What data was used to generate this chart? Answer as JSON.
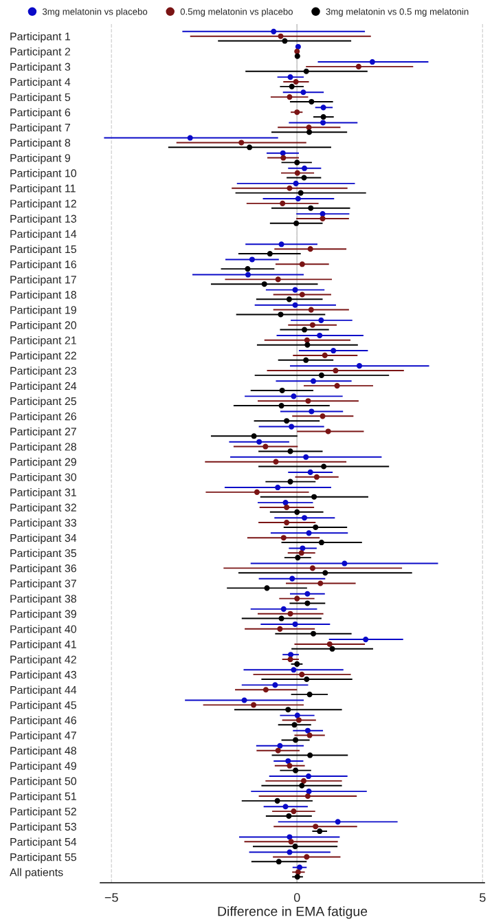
{
  "chart_data": {
    "type": "scatter",
    "orientation": "horizontal",
    "marker": "circle",
    "xlabel": "Difference in EMA fatigue",
    "xlim": [
      -5.3,
      5.05
    ],
    "xticks": [
      -5,
      0,
      5
    ],
    "grid": "x",
    "legend": "top",
    "ref_lines": [
      {
        "axis": "x",
        "value": 0,
        "color": "#c8c8c8",
        "line_style": "solid"
      }
    ],
    "categories": [
      "Participant 1",
      "Participant 2",
      "Participant 3",
      "Participant 4",
      "Participant 5",
      "Participant 6",
      "Participant 7",
      "Participant 8",
      "Participant 9",
      "Participant 10",
      "Participant 11",
      "Participant 12",
      "Participant 13",
      "Participant 14",
      "Participant 15",
      "Participant 16",
      "Participant 17",
      "Participant 18",
      "Participant 19",
      "Participant 20",
      "Participant 21",
      "Participant 22",
      "Participant 23",
      "Participant 24",
      "Participant 25",
      "Participant 26",
      "Participant 27",
      "Participant 28",
      "Participant 29",
      "Participant 30",
      "Participant 31",
      "Participant 32",
      "Participant 33",
      "Participant 34",
      "Participant 35",
      "Participant 36",
      "Participant 37",
      "Participant 38",
      "Participant 39",
      "Participant 40",
      "Participant 41",
      "Participant 42",
      "Participant 43",
      "Participant 44",
      "Participant 45",
      "Participant 46",
      "Participant 47",
      "Participant 48",
      "Participant 49",
      "Participant 50",
      "Participant 51",
      "Participant 52",
      "Participant 53",
      "Participant 54",
      "Participant 55",
      "All patients"
    ],
    "series": [
      {
        "name": "3mg melatonin vs placebo",
        "color": "#0a0ac8",
        "values": [
          -0.63,
          0.03,
          2.03,
          -0.18,
          0.17,
          0.71,
          0.7,
          -2.88,
          -0.38,
          0.2,
          -0.03,
          0.03,
          0.69,
          null,
          -0.42,
          -1.21,
          -1.32,
          -0.05,
          -0.05,
          0.65,
          0.61,
          0.98,
          1.68,
          0.44,
          -0.09,
          0.39,
          -0.15,
          -1.02,
          0.24,
          0.36,
          -0.52,
          -0.31,
          0.2,
          0.32,
          0.15,
          1.28,
          -0.13,
          0.28,
          -0.36,
          -0.05,
          1.85,
          -0.17,
          -0.09,
          -0.59,
          -1.42,
          0.01,
          0.29,
          -0.46,
          -0.24,
          0.31,
          0.32,
          -0.31,
          1.1,
          -0.2,
          -0.2,
          0.07
        ],
        "errors": [
          [
            -3.09,
            1.83
          ],
          null,
          [
            0.56,
            3.54
          ],
          [
            -0.53,
            0.18
          ],
          [
            -0.38,
            0.72
          ],
          [
            0.49,
            0.96
          ],
          [
            -0.22,
            1.63
          ],
          [
            -5.2,
            -0.51
          ],
          [
            -0.82,
            0.05
          ],
          [
            -0.24,
            0.65
          ],
          [
            -1.62,
            1.56
          ],
          [
            -0.92,
            1.0
          ],
          [
            -0.02,
            1.41
          ],
          null,
          [
            -1.39,
            0.55
          ],
          [
            -1.93,
            -0.49
          ],
          [
            -2.82,
            0.18
          ],
          [
            -0.84,
            0.74
          ],
          [
            -1.14,
            1.05
          ],
          [
            -0.17,
            1.49
          ],
          [
            -0.55,
            1.79
          ],
          [
            0.05,
            1.91
          ],
          [
            -0.19,
            3.56
          ],
          [
            -0.57,
            1.47
          ],
          [
            -1.41,
            1.23
          ],
          [
            -0.45,
            1.24
          ],
          [
            -1.03,
            0.73
          ],
          [
            -1.83,
            -0.21
          ],
          [
            -1.8,
            2.28
          ],
          [
            -0.24,
            0.96
          ],
          [
            -1.95,
            0.92
          ],
          [
            -1.06,
            0.43
          ],
          [
            -0.61,
            1.02
          ],
          [
            -0.71,
            1.37
          ],
          [
            -0.22,
            0.53
          ],
          [
            -1.25,
            3.8
          ],
          [
            -1.03,
            0.76
          ],
          [
            -0.19,
            0.75
          ],
          [
            -1.25,
            0.54
          ],
          [
            -0.98,
            0.89
          ],
          [
            0.86,
            2.86
          ],
          [
            -0.39,
            0.05
          ],
          [
            -1.44,
            1.25
          ],
          [
            -1.49,
            0.3
          ],
          [
            -3.02,
            0.18
          ],
          [
            -0.46,
            0.47
          ],
          [
            -0.11,
            0.7
          ],
          [
            -1.1,
            0.18
          ],
          [
            -0.63,
            0.17
          ],
          [
            -0.75,
            1.36
          ],
          [
            -1.24,
            1.88
          ],
          [
            -0.9,
            0.29
          ],
          [
            -0.51,
            2.71
          ],
          [
            -1.56,
            1.15
          ],
          [
            -1.29,
            0.9
          ],
          [
            -0.12,
            0.26
          ]
        ]
      },
      {
        "name": "0.5mg melatonin vs placebo",
        "color": "#7a1414",
        "values": [
          -0.44,
          0.0,
          1.66,
          -0.03,
          -0.2,
          0.0,
          0.32,
          -1.5,
          -0.37,
          0.01,
          -0.2,
          -0.39,
          0.69,
          null,
          0.36,
          0.14,
          -0.51,
          0.14,
          0.38,
          0.42,
          0.27,
          0.75,
          1.04,
          1.08,
          0.3,
          0.69,
          0.84,
          -0.85,
          -0.57,
          0.53,
          -1.08,
          -0.28,
          -0.28,
          -0.36,
          0.12,
          0.42,
          0.63,
          0.0,
          -0.18,
          -0.46,
          0.88,
          -0.18,
          0.13,
          -0.84,
          -1.17,
          0.05,
          0.34,
          -0.51,
          -0.2,
          0.18,
          0.29,
          -0.09,
          0.5,
          -0.16,
          0.26,
          0.03
        ],
        "errors": [
          [
            -2.88,
            1.99
          ],
          null,
          [
            0.24,
            3.13
          ],
          [
            -0.37,
            0.32
          ],
          [
            -0.71,
            0.3
          ],
          [
            -0.17,
            0.15
          ],
          [
            -0.52,
            1.17
          ],
          [
            -3.25,
            0.25
          ],
          [
            -0.8,
            0.05
          ],
          [
            -0.43,
            0.46
          ],
          [
            -1.76,
            1.36
          ],
          [
            -1.36,
            0.58
          ],
          [
            -0.02,
            1.4
          ],
          null,
          [
            -0.61,
            1.33
          ],
          [
            -0.58,
            0.86
          ],
          [
            -1.94,
            0.94
          ],
          [
            -0.64,
            0.92
          ],
          [
            -0.64,
            1.4
          ],
          [
            -0.24,
            1.07
          ],
          [
            -0.88,
            1.44
          ],
          [
            -0.11,
            1.63
          ],
          [
            -0.81,
            2.88
          ],
          [
            0.18,
            2.05
          ],
          [
            -1.06,
            1.66
          ],
          [
            -0.13,
            1.52
          ],
          [
            0.0,
            1.8
          ],
          [
            -1.71,
            0.02
          ],
          [
            -2.48,
            1.33
          ],
          [
            -0.05,
            1.12
          ],
          [
            -2.46,
            0.32
          ],
          [
            -1.01,
            0.46
          ],
          [
            -1.04,
            0.5
          ],
          [
            -1.34,
            0.61
          ],
          [
            -0.25,
            0.49
          ],
          [
            -1.98,
            2.83
          ],
          [
            -0.3,
            1.58
          ],
          [
            -0.48,
            0.47
          ],
          [
            -1.06,
            0.71
          ],
          [
            -1.41,
            0.48
          ],
          [
            -0.07,
            1.83
          ],
          [
            -0.4,
            0.05
          ],
          [
            -1.18,
            1.45
          ],
          [
            -1.67,
            0.0
          ],
          [
            -2.53,
            0.18
          ],
          [
            -0.4,
            0.51
          ],
          [
            -0.07,
            0.75
          ],
          [
            -1.09,
            0.07
          ],
          [
            -0.6,
            0.21
          ],
          [
            -0.85,
            1.21
          ],
          [
            -1.03,
            1.61
          ],
          [
            -0.67,
            0.49
          ],
          [
            -0.63,
            1.62
          ],
          [
            -1.42,
            1.1
          ],
          [
            -0.65,
            1.17
          ],
          [
            -0.13,
            0.21
          ]
        ]
      },
      {
        "name": "3mg melatonin vs 0.5 mg melatonin",
        "color": "#000000",
        "values": [
          -0.33,
          0.01,
          0.25,
          -0.14,
          0.39,
          0.71,
          0.33,
          -1.28,
          0.0,
          0.19,
          0.1,
          0.37,
          -0.02,
          null,
          -0.73,
          -1.33,
          -0.88,
          -0.21,
          -0.44,
          0.2,
          0.28,
          0.24,
          0.66,
          -0.4,
          -0.42,
          -0.28,
          -1.16,
          -0.18,
          0.72,
          -0.18,
          0.46,
          0.0,
          0.5,
          0.66,
          0.02,
          0.76,
          -0.81,
          0.28,
          -0.42,
          0.44,
          0.95,
          0.0,
          0.26,
          0.34,
          -0.24,
          -0.07,
          -0.04,
          0.35,
          -0.04,
          0.13,
          -0.53,
          -0.22,
          0.61,
          -0.05,
          -0.49,
          0.01
        ],
        "errors": [
          [
            -2.13,
            1.46
          ],
          null,
          [
            -1.39,
            1.9
          ],
          [
            -0.46,
            0.18
          ],
          [
            -0.19,
            0.97
          ],
          [
            0.44,
            0.99
          ],
          [
            -0.69,
            1.35
          ],
          [
            -3.47,
            0.92
          ],
          [
            -0.42,
            0.4
          ],
          [
            -0.28,
            0.65
          ],
          [
            -1.66,
            1.86
          ],
          [
            -0.69,
            1.43
          ],
          [
            -0.73,
            0.69
          ],
          null,
          [
            -1.58,
            0.1
          ],
          [
            -2.05,
            -0.61
          ],
          [
            -2.32,
            0.56
          ],
          [
            -1.1,
            0.69
          ],
          [
            -1.64,
            0.76
          ],
          [
            -0.46,
            0.86
          ],
          [
            -1.08,
            1.64
          ],
          [
            -0.51,
            0.98
          ],
          [
            -1.14,
            2.48
          ],
          [
            -1.25,
            0.44
          ],
          [
            -1.71,
            0.88
          ],
          [
            -1.16,
            0.61
          ],
          [
            -2.32,
            0.01
          ],
          [
            -1.04,
            0.69
          ],
          [
            -1.04,
            2.48
          ],
          [
            -0.85,
            0.5
          ],
          [
            -0.99,
            1.92
          ],
          [
            -0.73,
            0.71
          ],
          [
            -0.36,
            1.35
          ],
          [
            -0.42,
            1.75
          ],
          [
            -0.34,
            0.38
          ],
          [
            -1.58,
            3.1
          ],
          [
            -1.89,
            0.27
          ],
          [
            -0.2,
            0.76
          ],
          [
            -1.49,
            0.66
          ],
          [
            -0.59,
            1.47
          ],
          [
            -0.15,
            2.05
          ],
          [
            -0.16,
            0.15
          ],
          [
            -0.96,
            1.49
          ],
          [
            -0.16,
            0.83
          ],
          [
            -1.69,
            1.21
          ],
          [
            -0.51,
            0.38
          ],
          [
            -0.42,
            0.34
          ],
          [
            -0.68,
            1.37
          ],
          [
            -0.46,
            0.38
          ],
          [
            -0.96,
            1.21
          ],
          [
            -1.49,
            0.42
          ],
          [
            -0.84,
            0.4
          ],
          [
            0.41,
            0.81
          ],
          [
            -1.19,
            1.09
          ],
          [
            -1.23,
            0.26
          ],
          [
            -0.13,
            0.16
          ]
        ]
      }
    ]
  }
}
